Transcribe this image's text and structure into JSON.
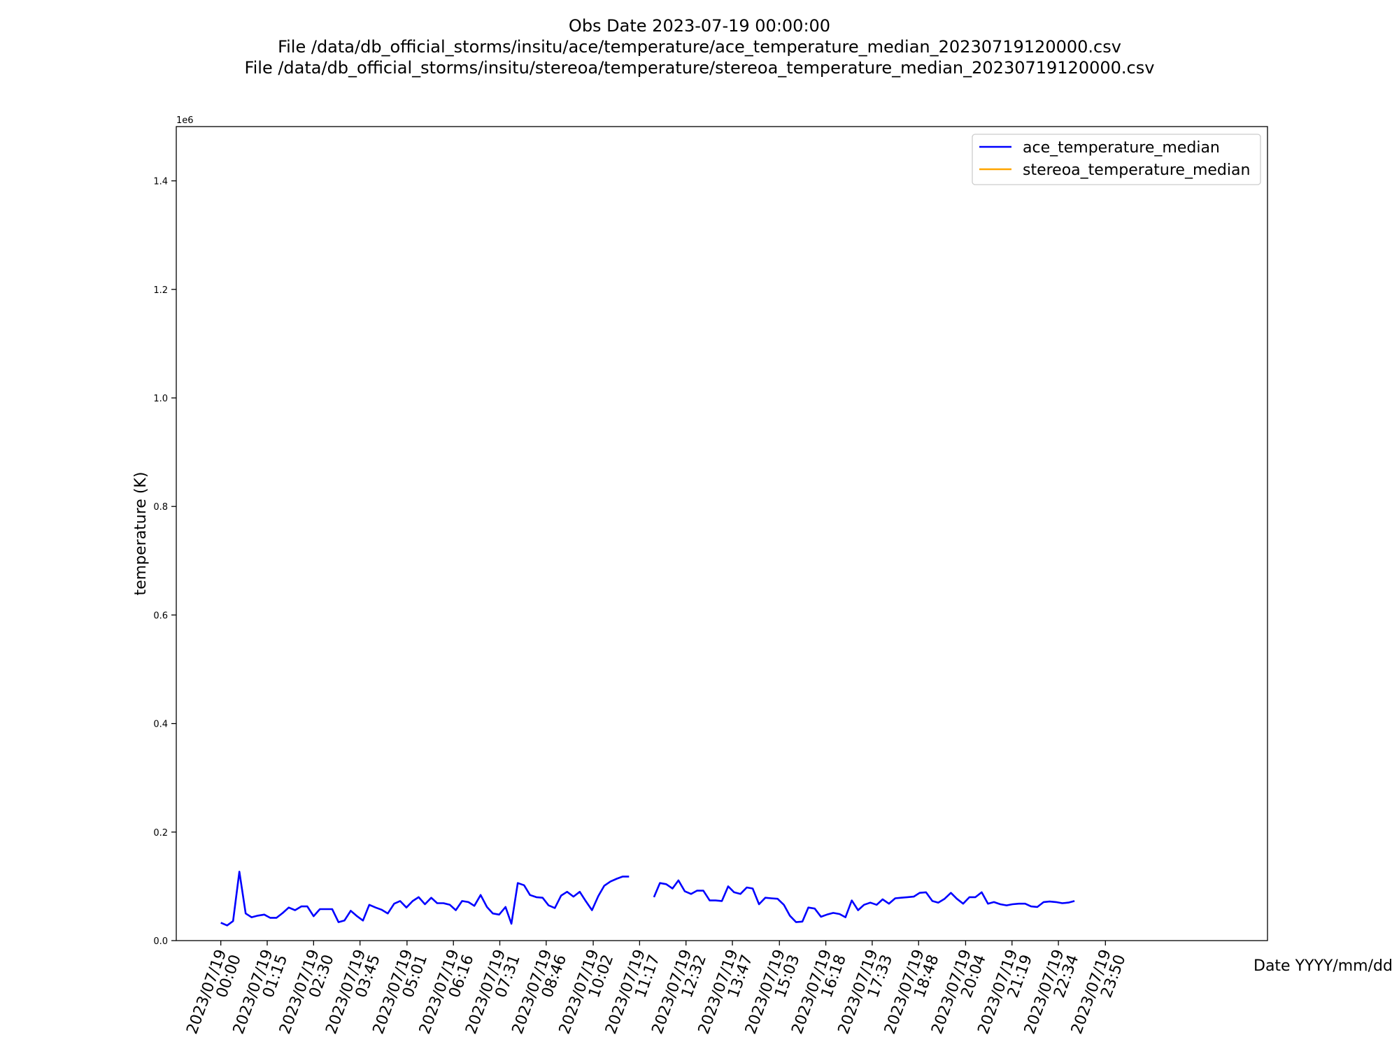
{
  "title_lines": [
    "Obs Date 2023-07-19 00:00:00",
    "File /data/db_official_storms/insitu/ace/temperature/ace_temperature_median_20230719120000.csv",
    "File /data/db_official_storms/insitu/stereoa/temperature/stereoa_temperature_median_20230719120000.csv"
  ],
  "chart_data": {
    "type": "line",
    "title": "Obs Date 2023-07-19 00:00:00",
    "xlabel": "Date YYYY/mm/dd",
    "ylabel": "temperature (K)",
    "y_scale_label": "1e6",
    "xlim_hours": [
      -1.2,
      28.2
    ],
    "ylim": [
      0,
      1500000
    ],
    "y_ticks": [
      0,
      200000,
      400000,
      600000,
      800000,
      1000000,
      1200000,
      1400000
    ],
    "y_tick_labels": [
      "0.0",
      "0.2",
      "0.4",
      "0.6",
      "0.8",
      "1.0",
      "1.2",
      "1.4"
    ],
    "x_ticks": [
      {
        "t": 0,
        "label": [
          "2023/07/19",
          "00:00"
        ]
      },
      {
        "t": 1.25,
        "label": [
          "2023/07/19",
          "01:15"
        ]
      },
      {
        "t": 2.5,
        "label": [
          "2023/07/19",
          "02:30"
        ]
      },
      {
        "t": 3.75,
        "label": [
          "2023/07/19",
          "03:45"
        ]
      },
      {
        "t": 5.0167,
        "label": [
          "2023/07/19",
          "05:01"
        ]
      },
      {
        "t": 6.2667,
        "label": [
          "2023/07/19",
          "06:16"
        ]
      },
      {
        "t": 7.5167,
        "label": [
          "2023/07/19",
          "07:31"
        ]
      },
      {
        "t": 8.7667,
        "label": [
          "2023/07/19",
          "08:46"
        ]
      },
      {
        "t": 10.0333,
        "label": [
          "2023/07/19",
          "10:02"
        ]
      },
      {
        "t": 11.2833,
        "label": [
          "2023/07/19",
          "11:17"
        ]
      },
      {
        "t": 12.5333,
        "label": [
          "2023/07/19",
          "12:32"
        ]
      },
      {
        "t": 13.7833,
        "label": [
          "2023/07/19",
          "13:47"
        ]
      },
      {
        "t": 15.05,
        "label": [
          "2023/07/19",
          "15:03"
        ]
      },
      {
        "t": 16.3,
        "label": [
          "2023/07/19",
          "16:18"
        ]
      },
      {
        "t": 17.55,
        "label": [
          "2023/07/19",
          "17:33"
        ]
      },
      {
        "t": 18.8,
        "label": [
          "2023/07/19",
          "18:48"
        ]
      },
      {
        "t": 20.0667,
        "label": [
          "2023/07/19",
          "20:04"
        ]
      },
      {
        "t": 21.3167,
        "label": [
          "2023/07/19",
          "21:19"
        ]
      },
      {
        "t": 22.5667,
        "label": [
          "2023/07/19",
          "22:34"
        ]
      },
      {
        "t": 23.8333,
        "label": [
          "2023/07/19",
          "23:50"
        ]
      }
    ],
    "grid": false,
    "legend": "top-right",
    "series": [
      {
        "name": "ace_temperature_median",
        "color": "#0000ff",
        "segments": [
          [
            [
              0.0,
              33000
            ],
            [
              0.17,
              28000
            ],
            [
              0.33,
              36000
            ],
            [
              0.5,
              127000
            ],
            [
              0.67,
              50000
            ],
            [
              0.83,
              43000
            ],
            [
              1.0,
              46000
            ],
            [
              1.17,
              48000
            ],
            [
              1.33,
              42000
            ],
            [
              1.5,
              42000
            ],
            [
              1.67,
              51000
            ],
            [
              1.83,
              61000
            ],
            [
              2.0,
              56000
            ],
            [
              2.17,
              63000
            ],
            [
              2.33,
              63000
            ],
            [
              2.5,
              45000
            ],
            [
              2.67,
              58000
            ],
            [
              2.83,
              58000
            ],
            [
              3.0,
              58000
            ],
            [
              3.17,
              34000
            ],
            [
              3.33,
              37000
            ],
            [
              3.5,
              55000
            ],
            [
              3.67,
              45000
            ],
            [
              3.83,
              37000
            ],
            [
              4.0,
              66000
            ],
            [
              4.17,
              61000
            ],
            [
              4.33,
              57000
            ],
            [
              4.5,
              50000
            ],
            [
              4.67,
              68000
            ],
            [
              4.83,
              73000
            ],
            [
              5.0,
              61000
            ],
            [
              5.17,
              73000
            ],
            [
              5.33,
              80000
            ],
            [
              5.5,
              67000
            ],
            [
              5.67,
              79000
            ],
            [
              5.83,
              69000
            ],
            [
              6.0,
              69000
            ],
            [
              6.17,
              66000
            ],
            [
              6.33,
              56000
            ],
            [
              6.5,
              73000
            ],
            [
              6.67,
              71000
            ],
            [
              6.83,
              64000
            ],
            [
              7.0,
              84000
            ],
            [
              7.17,
              62000
            ],
            [
              7.33,
              50000
            ],
            [
              7.5,
              48000
            ],
            [
              7.67,
              62000
            ],
            [
              7.83,
              31000
            ],
            [
              8.0,
              106000
            ],
            [
              8.17,
              102000
            ],
            [
              8.33,
              84000
            ],
            [
              8.5,
              80000
            ],
            [
              8.67,
              79000
            ],
            [
              8.83,
              65000
            ],
            [
              9.0,
              60000
            ],
            [
              9.17,
              83000
            ],
            [
              9.33,
              90000
            ],
            [
              9.5,
              81000
            ],
            [
              9.67,
              90000
            ],
            [
              9.83,
              73000
            ],
            [
              10.0,
              56000
            ],
            [
              10.17,
              82000
            ],
            [
              10.33,
              101000
            ],
            [
              10.5,
              109000
            ],
            [
              10.67,
              114000
            ],
            [
              10.83,
              118000
            ],
            [
              11.0,
              118000
            ]
          ],
          [
            [
              11.67,
              80000
            ],
            [
              11.83,
              106000
            ],
            [
              12.0,
              104000
            ],
            [
              12.17,
              96000
            ],
            [
              12.33,
              111000
            ],
            [
              12.5,
              91000
            ],
            [
              12.67,
              86000
            ],
            [
              12.83,
              92000
            ],
            [
              13.0,
              92000
            ],
            [
              13.17,
              74000
            ],
            [
              13.33,
              74000
            ],
            [
              13.5,
              73000
            ],
            [
              13.67,
              100000
            ],
            [
              13.83,
              89000
            ],
            [
              14.0,
              86000
            ],
            [
              14.17,
              98000
            ],
            [
              14.33,
              96000
            ],
            [
              14.5,
              67000
            ],
            [
              14.67,
              79000
            ],
            [
              14.83,
              78000
            ],
            [
              15.0,
              77000
            ],
            [
              15.17,
              66000
            ],
            [
              15.33,
              46000
            ],
            [
              15.5,
              34000
            ],
            [
              15.67,
              35000
            ],
            [
              15.83,
              61000
            ],
            [
              16.0,
              59000
            ],
            [
              16.17,
              44000
            ],
            [
              16.33,
              48000
            ],
            [
              16.5,
              51000
            ],
            [
              16.67,
              49000
            ],
            [
              16.83,
              43000
            ],
            [
              17.0,
              74000
            ],
            [
              17.17,
              56000
            ],
            [
              17.33,
              66000
            ],
            [
              17.5,
              70000
            ],
            [
              17.67,
              66000
            ],
            [
              17.83,
              76000
            ],
            [
              18.0,
              68000
            ],
            [
              18.17,
              78000
            ],
            [
              18.33,
              79000
            ],
            [
              18.5,
              80000
            ],
            [
              18.67,
              81000
            ],
            [
              18.83,
              88000
            ],
            [
              19.0,
              89000
            ],
            [
              19.17,
              73000
            ],
            [
              19.33,
              70000
            ],
            [
              19.5,
              77000
            ],
            [
              19.67,
              88000
            ],
            [
              19.83,
              77000
            ],
            [
              20.0,
              68000
            ],
            [
              20.17,
              80000
            ],
            [
              20.33,
              80000
            ],
            [
              20.5,
              89000
            ],
            [
              20.67,
              68000
            ],
            [
              20.83,
              71000
            ],
            [
              21.0,
              67000
            ],
            [
              21.17,
              65000
            ],
            [
              21.33,
              67000
            ],
            [
              21.5,
              68000
            ],
            [
              21.67,
              68000
            ],
            [
              21.83,
              63000
            ],
            [
              22.0,
              62000
            ],
            [
              22.17,
              71000
            ],
            [
              22.33,
              72000
            ],
            [
              22.5,
              71000
            ],
            [
              22.67,
              69000
            ],
            [
              22.83,
              70000
            ],
            [
              23.0,
              73000
            ]
          ]
        ]
      },
      {
        "name": "stereoa_temperature_median",
        "color": "#ffa500",
        "segments": []
      }
    ]
  }
}
